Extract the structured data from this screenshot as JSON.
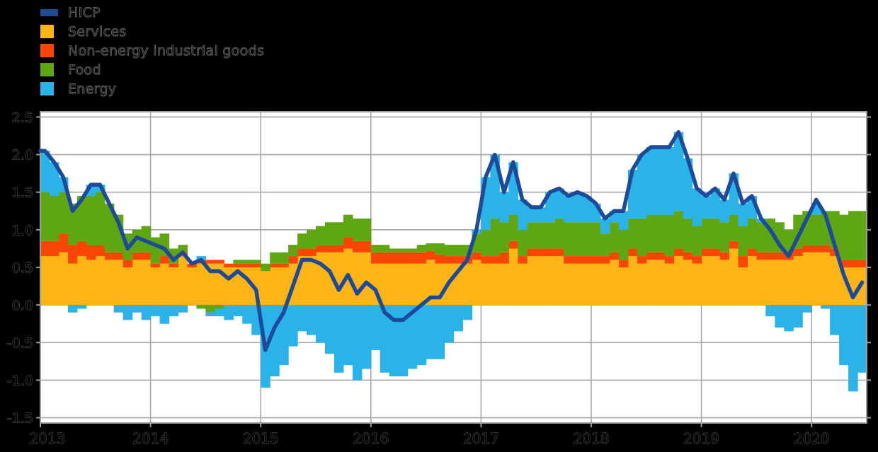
{
  "chart_data": {
    "type": "combo-stacked-bar-line",
    "title": "",
    "xlabel": "",
    "ylabel": "",
    "x": {
      "frequency": "monthly",
      "start": "2013-01",
      "end": "2020-06",
      "tick_labels": [
        "2013",
        "2014",
        "2015",
        "2016",
        "2017",
        "2018",
        "2019",
        "2020"
      ]
    },
    "y_ticks": [
      "2.5",
      "2.0",
      "1.5",
      "1.0",
      "0.5",
      "0.0",
      "-0.5",
      "-1.0",
      "-1.5"
    ],
    "ylim": [
      -1.57,
      2.57
    ],
    "grid": true,
    "legend_position": "top-left",
    "colors": {
      "page_bg": "#000000",
      "plot_bg": "#ffffff",
      "gridline": "#a8a8a8",
      "frame": "#9e9e9e",
      "tick_text_outline": "#666666"
    },
    "series": [
      {
        "name": "HICP",
        "type": "line",
        "color": "#1d4a99",
        "values": [
          2.05,
          1.9,
          1.7,
          1.25,
          1.4,
          1.6,
          1.6,
          1.35,
          1.1,
          0.75,
          0.9,
          0.85,
          0.8,
          0.75,
          0.6,
          0.7,
          0.55,
          0.6,
          0.45,
          0.45,
          0.35,
          0.45,
          0.35,
          0.2,
          -0.6,
          -0.3,
          -0.1,
          0.25,
          0.6,
          0.6,
          0.55,
          0.45,
          0.2,
          0.4,
          0.15,
          0.3,
          0.2,
          -0.1,
          -0.2,
          -0.2,
          -0.1,
          0.0,
          0.1,
          0.1,
          0.3,
          0.45,
          0.6,
          1.0,
          1.7,
          2.0,
          1.5,
          1.9,
          1.4,
          1.3,
          1.3,
          1.5,
          1.55,
          1.45,
          1.5,
          1.45,
          1.35,
          1.15,
          1.25,
          1.25,
          1.8,
          2.0,
          2.1,
          2.1,
          2.1,
          2.3,
          1.95,
          1.55,
          1.45,
          1.55,
          1.4,
          1.75,
          1.35,
          1.45,
          1.15,
          1.0,
          0.8,
          0.65,
          0.9,
          1.15,
          1.4,
          1.2,
          0.8,
          0.4,
          0.1,
          0.3
        ]
      },
      {
        "name": "Services",
        "type": "bar",
        "color": "#fdb515",
        "values": [
          0.65,
          0.65,
          0.7,
          0.55,
          0.65,
          0.6,
          0.65,
          0.6,
          0.6,
          0.5,
          0.6,
          0.6,
          0.5,
          0.55,
          0.5,
          0.65,
          0.5,
          0.55,
          0.55,
          0.55,
          0.5,
          0.5,
          0.5,
          0.5,
          0.45,
          0.5,
          0.5,
          0.55,
          0.65,
          0.65,
          0.7,
          0.7,
          0.7,
          0.75,
          0.7,
          0.7,
          0.55,
          0.55,
          0.55,
          0.55,
          0.55,
          0.55,
          0.6,
          0.55,
          0.55,
          0.55,
          0.55,
          0.6,
          0.55,
          0.55,
          0.55,
          0.75,
          0.55,
          0.65,
          0.65,
          0.65,
          0.65,
          0.55,
          0.55,
          0.55,
          0.55,
          0.55,
          0.6,
          0.5,
          0.65,
          0.55,
          0.6,
          0.6,
          0.55,
          0.65,
          0.6,
          0.55,
          0.65,
          0.65,
          0.6,
          0.75,
          0.5,
          0.65,
          0.6,
          0.6,
          0.6,
          0.6,
          0.65,
          0.7,
          0.7,
          0.7,
          0.65,
          0.5,
          0.5,
          0.5
        ]
      },
      {
        "name": "Non-energy industrial goods",
        "type": "bar",
        "color": "#fa4605",
        "values": [
          0.2,
          0.2,
          0.25,
          0.25,
          0.2,
          0.2,
          0.15,
          0.1,
          0.1,
          0.1,
          0.1,
          0.1,
          0.05,
          0.1,
          0.05,
          0.05,
          0.05,
          0.05,
          0.05,
          0.05,
          0.05,
          0.05,
          0.05,
          0.05,
          0.0,
          0.05,
          0.05,
          0.1,
          0.1,
          0.1,
          0.1,
          0.1,
          0.1,
          0.15,
          0.15,
          0.15,
          0.15,
          0.15,
          0.15,
          0.15,
          0.15,
          0.15,
          0.12,
          0.12,
          0.1,
          0.1,
          0.1,
          0.1,
          0.1,
          0.1,
          0.15,
          0.1,
          0.1,
          0.1,
          0.1,
          0.1,
          0.1,
          0.1,
          0.1,
          0.1,
          0.1,
          0.1,
          0.1,
          0.1,
          0.1,
          0.1,
          0.1,
          0.1,
          0.1,
          0.1,
          0.1,
          0.1,
          0.1,
          0.1,
          0.1,
          0.1,
          0.15,
          0.1,
          0.1,
          0.1,
          0.1,
          0.1,
          0.1,
          0.1,
          0.1,
          0.1,
          0.1,
          0.1,
          0.1,
          0.1
        ]
      },
      {
        "name": "Food",
        "type": "bar",
        "color": "#5fa712",
        "values": [
          0.65,
          0.6,
          0.55,
          0.55,
          0.6,
          0.65,
          0.7,
          0.65,
          0.5,
          0.35,
          0.3,
          0.35,
          0.35,
          0.3,
          0.2,
          0.1,
          0.0,
          -0.05,
          -0.1,
          -0.05,
          0.0,
          0.05,
          0.05,
          0.05,
          0.1,
          0.15,
          0.15,
          0.15,
          0.2,
          0.25,
          0.25,
          0.3,
          0.3,
          0.3,
          0.3,
          0.3,
          0.1,
          0.1,
          0.05,
          0.05,
          0.05,
          0.1,
          0.1,
          0.15,
          0.15,
          0.15,
          0.15,
          0.25,
          0.35,
          0.5,
          0.4,
          0.35,
          0.35,
          0.35,
          0.35,
          0.35,
          0.4,
          0.45,
          0.45,
          0.45,
          0.45,
          0.3,
          0.4,
          0.4,
          0.4,
          0.5,
          0.5,
          0.5,
          0.55,
          0.5,
          0.45,
          0.4,
          0.4,
          0.4,
          0.4,
          0.35,
          0.4,
          0.4,
          0.4,
          0.45,
          0.4,
          0.3,
          0.45,
          0.45,
          0.4,
          0.45,
          0.5,
          0.6,
          0.65,
          0.65
        ]
      },
      {
        "name": "Energy",
        "type": "bar",
        "color": "#29b3e9",
        "values": [
          0.55,
          0.45,
          0.2,
          -0.1,
          -0.05,
          0.15,
          0.1,
          0.0,
          -0.1,
          -0.2,
          -0.1,
          -0.2,
          -0.15,
          -0.25,
          -0.15,
          -0.1,
          0.0,
          0.05,
          -0.05,
          -0.1,
          -0.2,
          -0.15,
          -0.25,
          -0.4,
          -1.1,
          -0.95,
          -0.8,
          -0.55,
          -0.35,
          -0.4,
          -0.5,
          -0.65,
          -0.9,
          -0.8,
          -1.0,
          -0.85,
          -0.6,
          -0.9,
          -0.95,
          -0.95,
          -0.85,
          -0.8,
          -0.72,
          -0.72,
          -0.5,
          -0.35,
          -0.2,
          0.05,
          0.7,
          0.85,
          0.4,
          0.7,
          0.4,
          0.2,
          0.2,
          0.4,
          0.4,
          0.35,
          0.4,
          0.35,
          0.25,
          0.2,
          0.15,
          0.25,
          0.65,
          0.85,
          0.9,
          0.9,
          0.9,
          1.05,
          0.8,
          0.5,
          0.3,
          0.4,
          0.3,
          0.55,
          0.3,
          0.3,
          0.05,
          -0.15,
          -0.3,
          -0.35,
          -0.3,
          -0.1,
          0.15,
          -0.05,
          -0.4,
          -0.8,
          -1.15,
          -0.9
        ]
      }
    ]
  }
}
